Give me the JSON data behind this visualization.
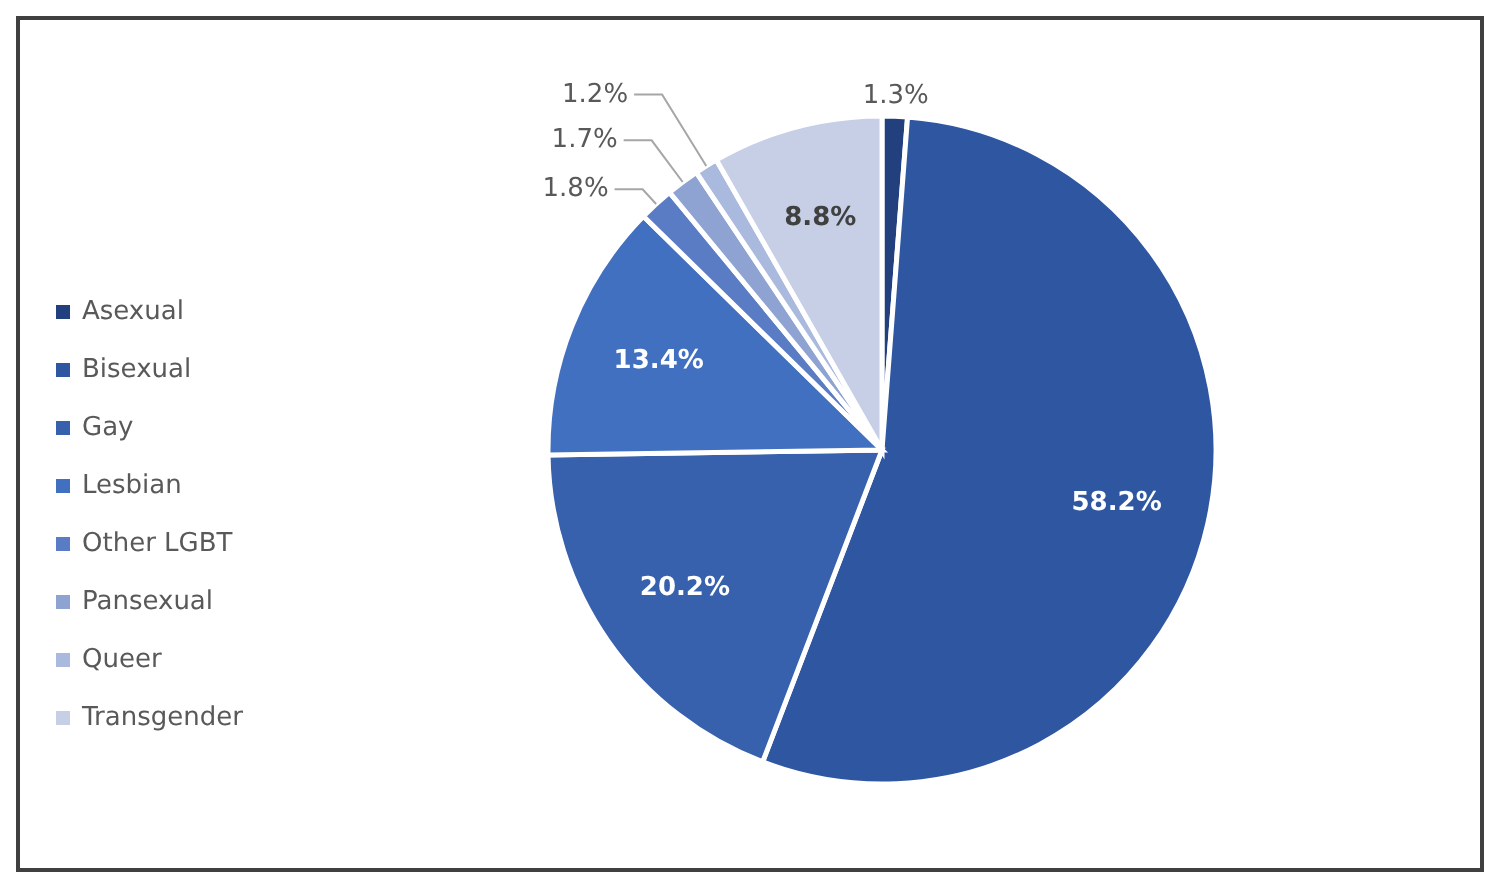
{
  "chart_data": {
    "type": "pie",
    "categories": [
      "Asexual",
      "Bisexual",
      "Gay",
      "Lesbian",
      "Other LGBT",
      "Pansexual",
      "Queer",
      "Transgender"
    ],
    "values": [
      1.3,
      58.2,
      20.2,
      13.4,
      1.8,
      1.7,
      1.2,
      8.8
    ],
    "colors": [
      "#22407e",
      "#2f56a0",
      "#3760ad",
      "#4270c0",
      "#5a7cc4",
      "#8fa3d2",
      "#aab9de",
      "#c6cfe6"
    ],
    "value_labels": [
      "1.3%",
      "58.2%",
      "20.2%",
      "13.4%",
      "1.8%",
      "1.7%",
      "1.2%",
      "8.8%"
    ],
    "legend": "left"
  }
}
